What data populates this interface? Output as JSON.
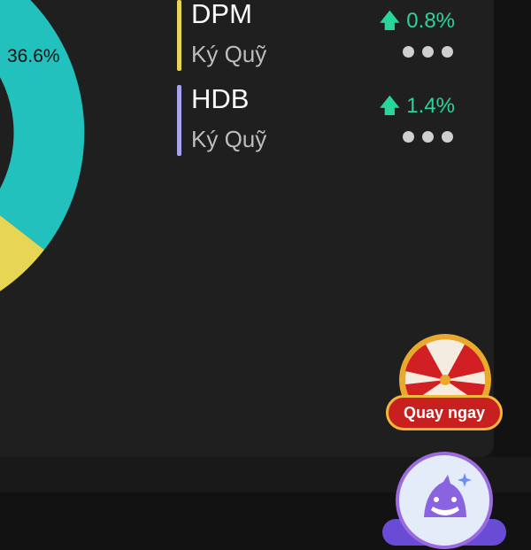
{
  "chart_data": {
    "type": "pie",
    "slices": [
      {
        "label": "36.6%",
        "value": 36.6,
        "color": "#22c1bd"
      },
      {
        "color": "#e6d653"
      }
    ]
  },
  "holdings": [
    {
      "symbol": "DPM",
      "type": "Ký Quỹ",
      "change": "0.8%",
      "direction": "up",
      "color": "#e6d653"
    },
    {
      "symbol": "HDB",
      "type": "Ký Quỹ",
      "change": "1.4%",
      "direction": "up",
      "color": "#a9a2ee"
    }
  ],
  "promo": {
    "button_label": "Quay ngay"
  },
  "icons": {
    "up": "arrow-up-icon",
    "more": "more-dots-icon",
    "wheel": "lucky-wheel-icon",
    "shark": "shark-assistant-icon"
  }
}
